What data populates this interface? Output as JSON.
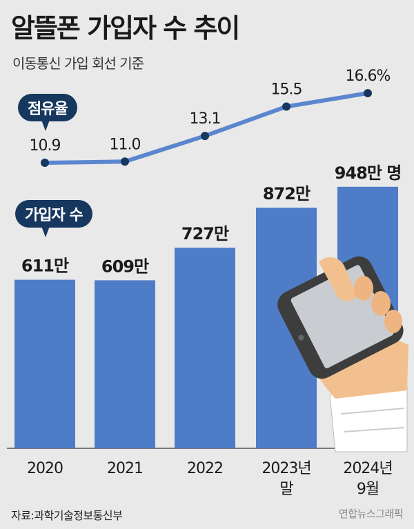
{
  "header": {
    "title": "알뜰폰 가입자 수 추이",
    "subtitle": "이동통신 가입 회선 기준"
  },
  "legend": {
    "share_label": "점유율",
    "subscriber_label": "가입자 수"
  },
  "footer": {
    "source": "자료:과학기술정보통신부",
    "credit": "연합뉴스그래픽"
  },
  "colors": {
    "bar": "#4f7cc7",
    "line": "#5a86cf",
    "bubble": "#16375e",
    "background": "#e9e9e9"
  },
  "decor": {
    "illustration": "hand-holding-smartphone"
  },
  "chart_data": [
    {
      "type": "bar",
      "name_hint": "subscribers",
      "categories": [
        "2020",
        "2021",
        "2022",
        "2023년 말",
        "2024년 9월"
      ],
      "category_lines": [
        [
          "2020"
        ],
        [
          "2021"
        ],
        [
          "2022"
        ],
        [
          "2023년",
          "말"
        ],
        [
          "2024년",
          "9월"
        ]
      ],
      "values": [
        611,
        609,
        727,
        872,
        948
      ],
      "data_labels": [
        "611만",
        "609만",
        "727만",
        "872만",
        "948만 명"
      ],
      "ylim": [
        0,
        1000
      ]
    },
    {
      "type": "line",
      "name_hint": "market share",
      "categories": [
        "2020",
        "2021",
        "2022",
        "2023년 말",
        "2024년 9월"
      ],
      "values": [
        10.9,
        11.0,
        13.1,
        15.5,
        16.6
      ],
      "data_labels": [
        "10.9",
        "11.0",
        "13.1",
        "15.5",
        "16.6%"
      ],
      "ylim": [
        10,
        17
      ]
    }
  ]
}
